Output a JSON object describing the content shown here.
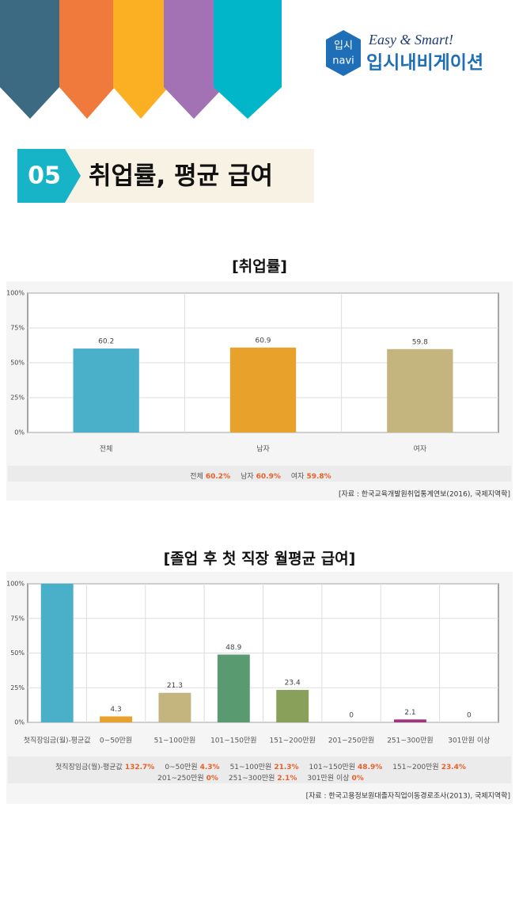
{
  "header": {
    "logo_icon": [
      "입시",
      "navi"
    ],
    "slogan": "Easy & Smart!",
    "brand": "입시내비게이션"
  },
  "section": {
    "number": "05",
    "title": "취업률, 평균 급여"
  },
  "chart_data": [
    {
      "type": "bar",
      "title": "[취업률]",
      "categories": [
        "전체",
        "남자",
        "여자"
      ],
      "values": [
        60.2,
        60.9,
        59.8
      ],
      "value_labels": [
        "60.2%",
        "60.9%",
        "59.8%"
      ],
      "colors": [
        "#4ab0c9",
        "#e8a22c",
        "#c4b47e"
      ],
      "ylim": [
        0,
        100
      ],
      "yticks": [
        {
          "value": 0,
          "label": "0%"
        },
        {
          "value": 25,
          "label": "25%"
        },
        {
          "value": 50,
          "label": "50%"
        },
        {
          "value": 75,
          "label": "75%"
        },
        {
          "value": 100,
          "label": "100%"
        }
      ],
      "grid": true,
      "source": "[자료 : 한국교육개발원취업통계연보(2016), 국제지역학]"
    },
    {
      "type": "bar",
      "title": "[졸업 후 첫 직장 월평균 급여]",
      "categories": [
        "첫직장임금(월)-평균값",
        "0~50만원",
        "51~100만원",
        "101~150만원",
        "151~200만원",
        "201~250만원",
        "251~300만원",
        "301만원 이상"
      ],
      "values": [
        132.7,
        4.3,
        21.3,
        48.9,
        23.4,
        0,
        2.1,
        0
      ],
      "value_labels": [
        "132.7%",
        "4.3%",
        "21.3%",
        "48.9%",
        "23.4%",
        "0%",
        "2.1%",
        "0%"
      ],
      "colors": [
        "#4ab0c9",
        "#e8a22c",
        "#c4b47e",
        "#5a9a70",
        "#88a05a",
        "#999999",
        "#a0357f",
        "#999999"
      ],
      "ylim": [
        0,
        100
      ],
      "yticks": [
        {
          "value": 0,
          "label": "0%"
        },
        {
          "value": 25,
          "label": "25%"
        },
        {
          "value": 50,
          "label": "50%"
        },
        {
          "value": 75,
          "label": "75%"
        },
        {
          "value": 100,
          "label": "100%"
        }
      ],
      "grid": true,
      "source": "[자료 : 한국고용정보원대졸자직업이동경로조사(2013), 국제지역학]"
    }
  ]
}
